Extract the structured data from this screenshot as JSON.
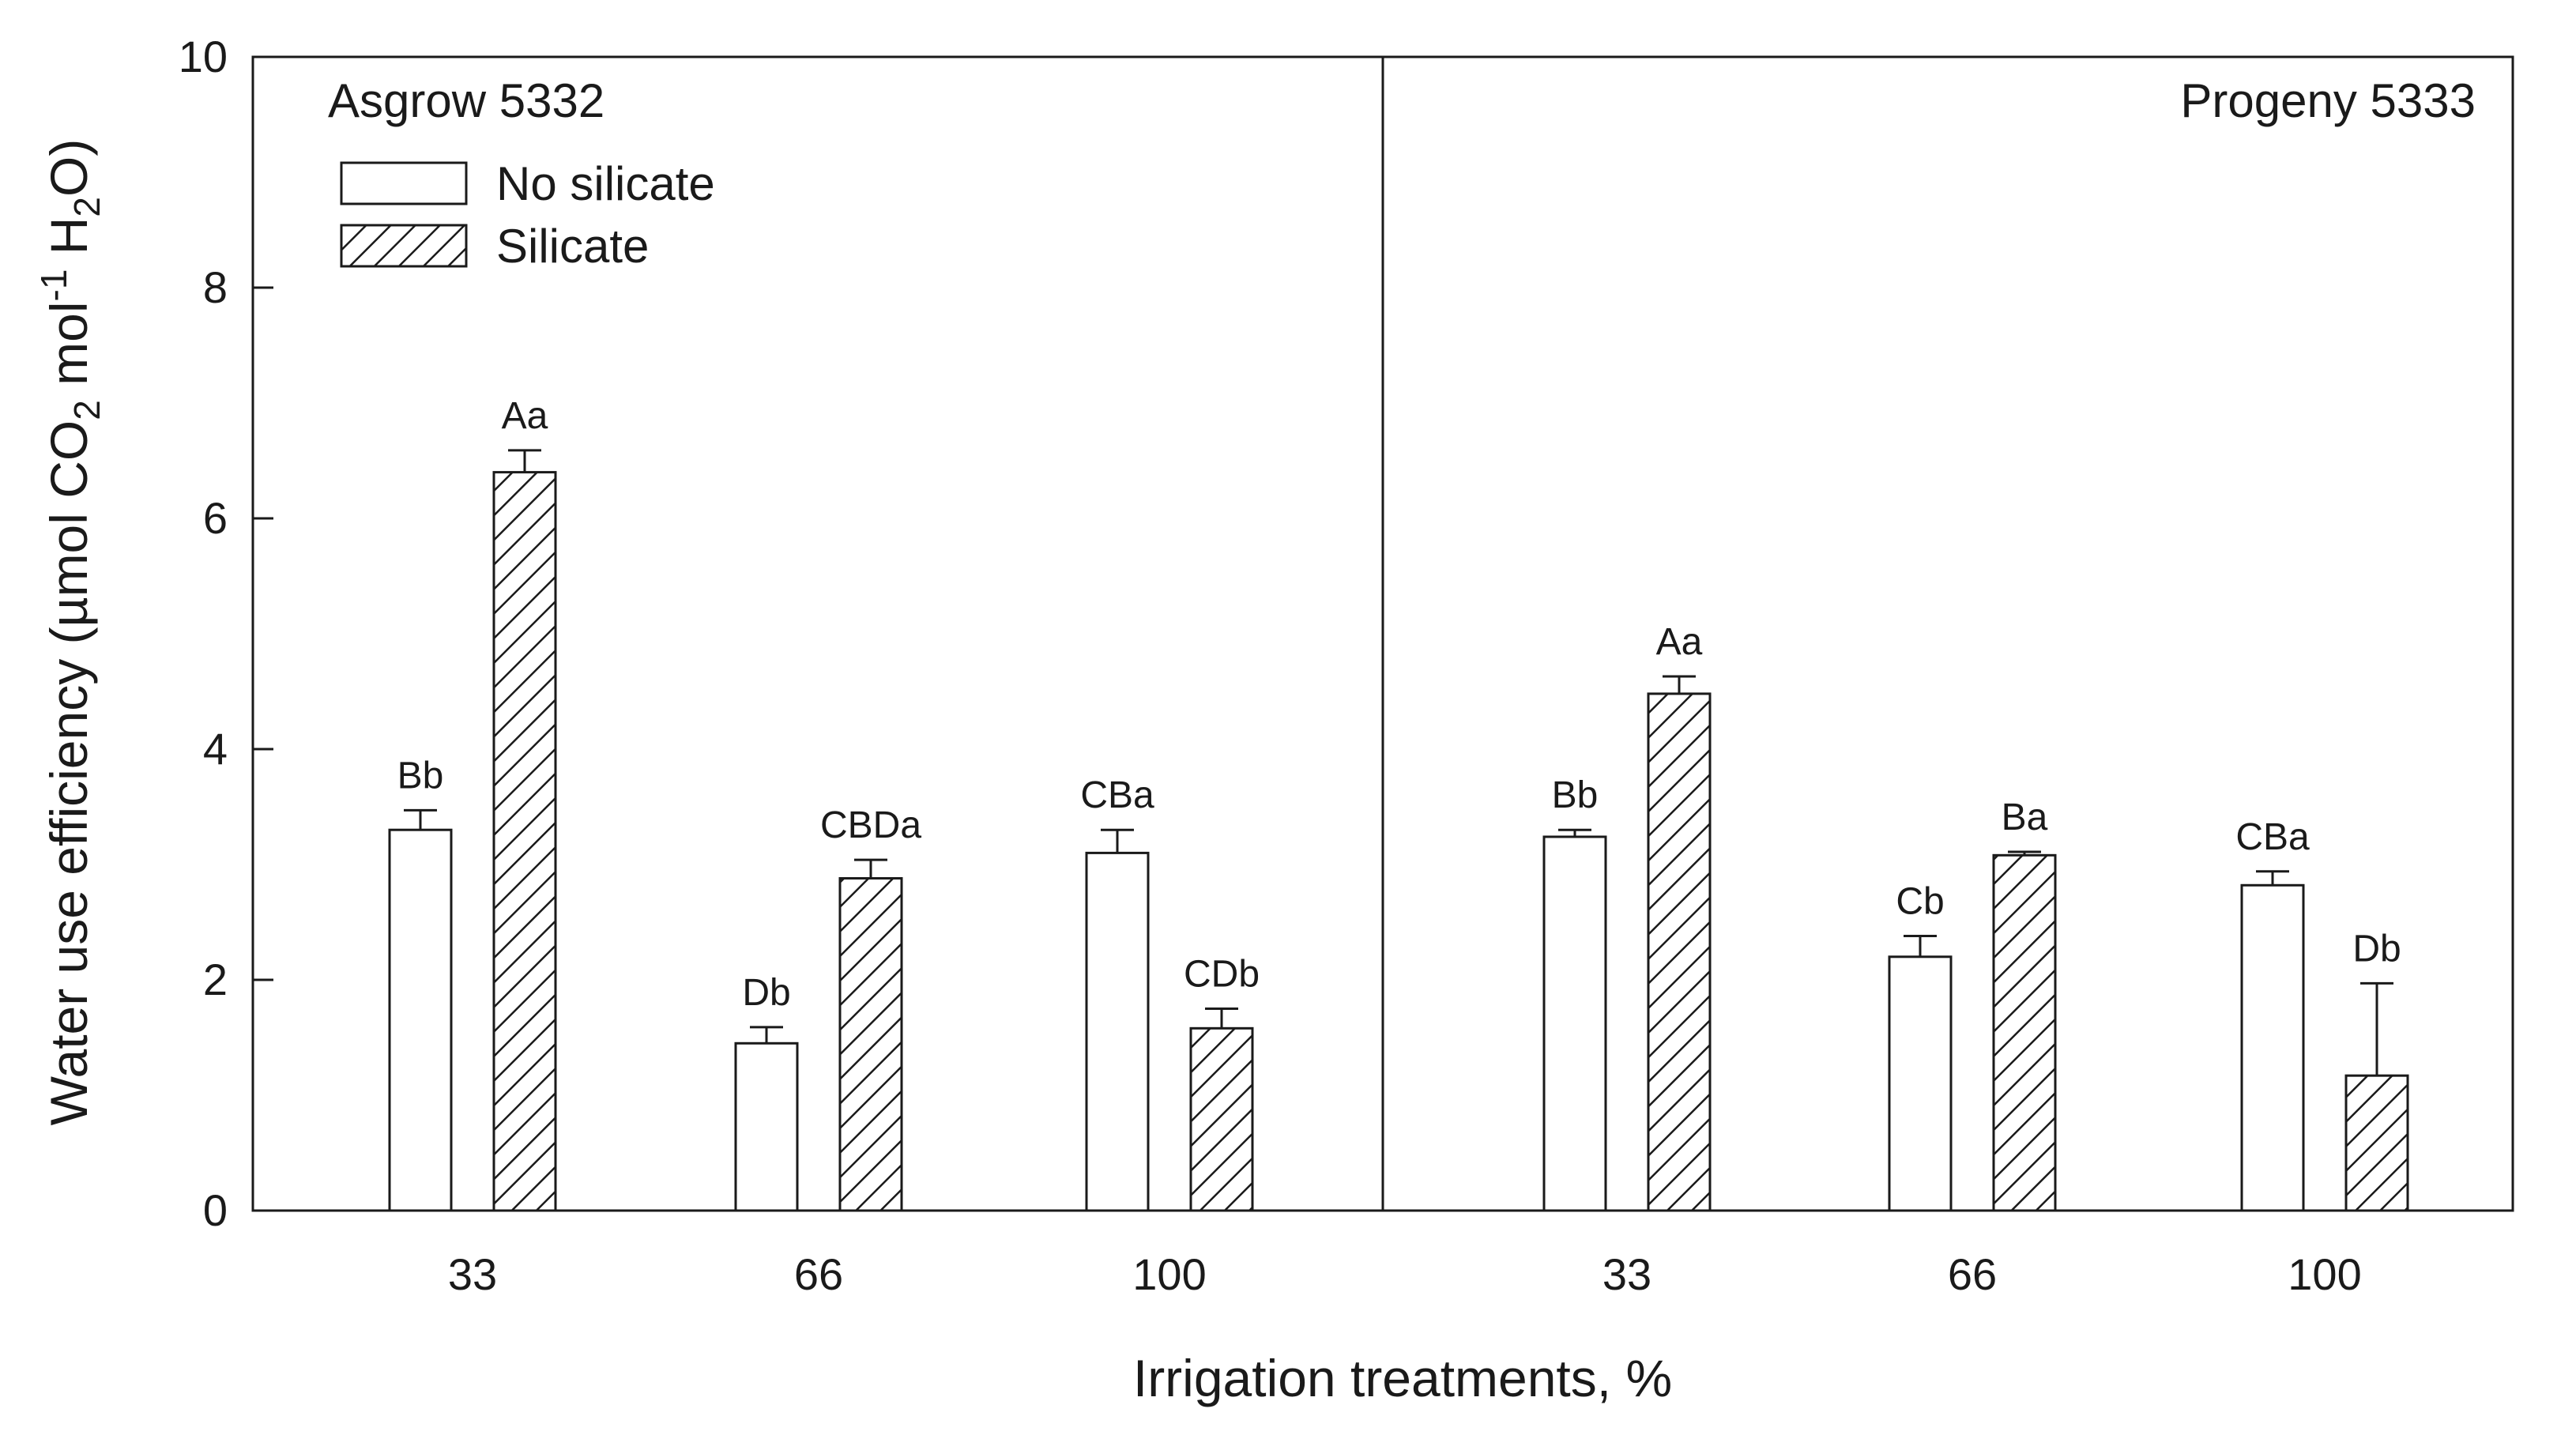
{
  "chart_data": {
    "type": "bar",
    "ylim": [
      0,
      10
    ],
    "yticks": [
      "0",
      "2",
      "4",
      "6",
      "8",
      "10"
    ],
    "xlabel": "Irrigation treatments, %",
    "ylabel": {
      "prefix": "Water use efficiency (µmol CO",
      "sub1": "2",
      "mid": " mol",
      "sup": "-1",
      "mid2": " H",
      "sub2": "2",
      "suffix": "O)"
    },
    "legend": [
      {
        "name": "No silicate",
        "pattern": "open"
      },
      {
        "name": "Silicate",
        "pattern": "hatched"
      }
    ],
    "panels": [
      {
        "title": "Asgrow 5332",
        "categories": [
          "33",
          "66",
          "100"
        ],
        "series": [
          {
            "name": "No silicate",
            "values": [
              3.3,
              1.45,
              3.1
            ],
            "errors": [
              0.17,
              0.14,
              0.2
            ],
            "labels": [
              "Bb",
              "Db",
              "CBa"
            ]
          },
          {
            "name": "Silicate",
            "values": [
              6.4,
              2.88,
              1.58
            ],
            "errors": [
              0.19,
              0.16,
              0.17
            ],
            "labels": [
              "Aa",
              "CBDa",
              "CDb"
            ]
          }
        ]
      },
      {
        "title": "Progeny 5333",
        "categories": [
          "33",
          "66",
          "100"
        ],
        "series": [
          {
            "name": "No silicate",
            "values": [
              3.24,
              2.2,
              2.82
            ],
            "errors": [
              0.06,
              0.18,
              0.12
            ],
            "labels": [
              "Bb",
              "Cb",
              "CBa"
            ]
          },
          {
            "name": "Silicate",
            "values": [
              4.48,
              3.08,
              1.17
            ],
            "errors": [
              0.15,
              0.03,
              0.8
            ],
            "labels": [
              "Aa",
              "Ba",
              "Db"
            ]
          }
        ]
      }
    ]
  }
}
